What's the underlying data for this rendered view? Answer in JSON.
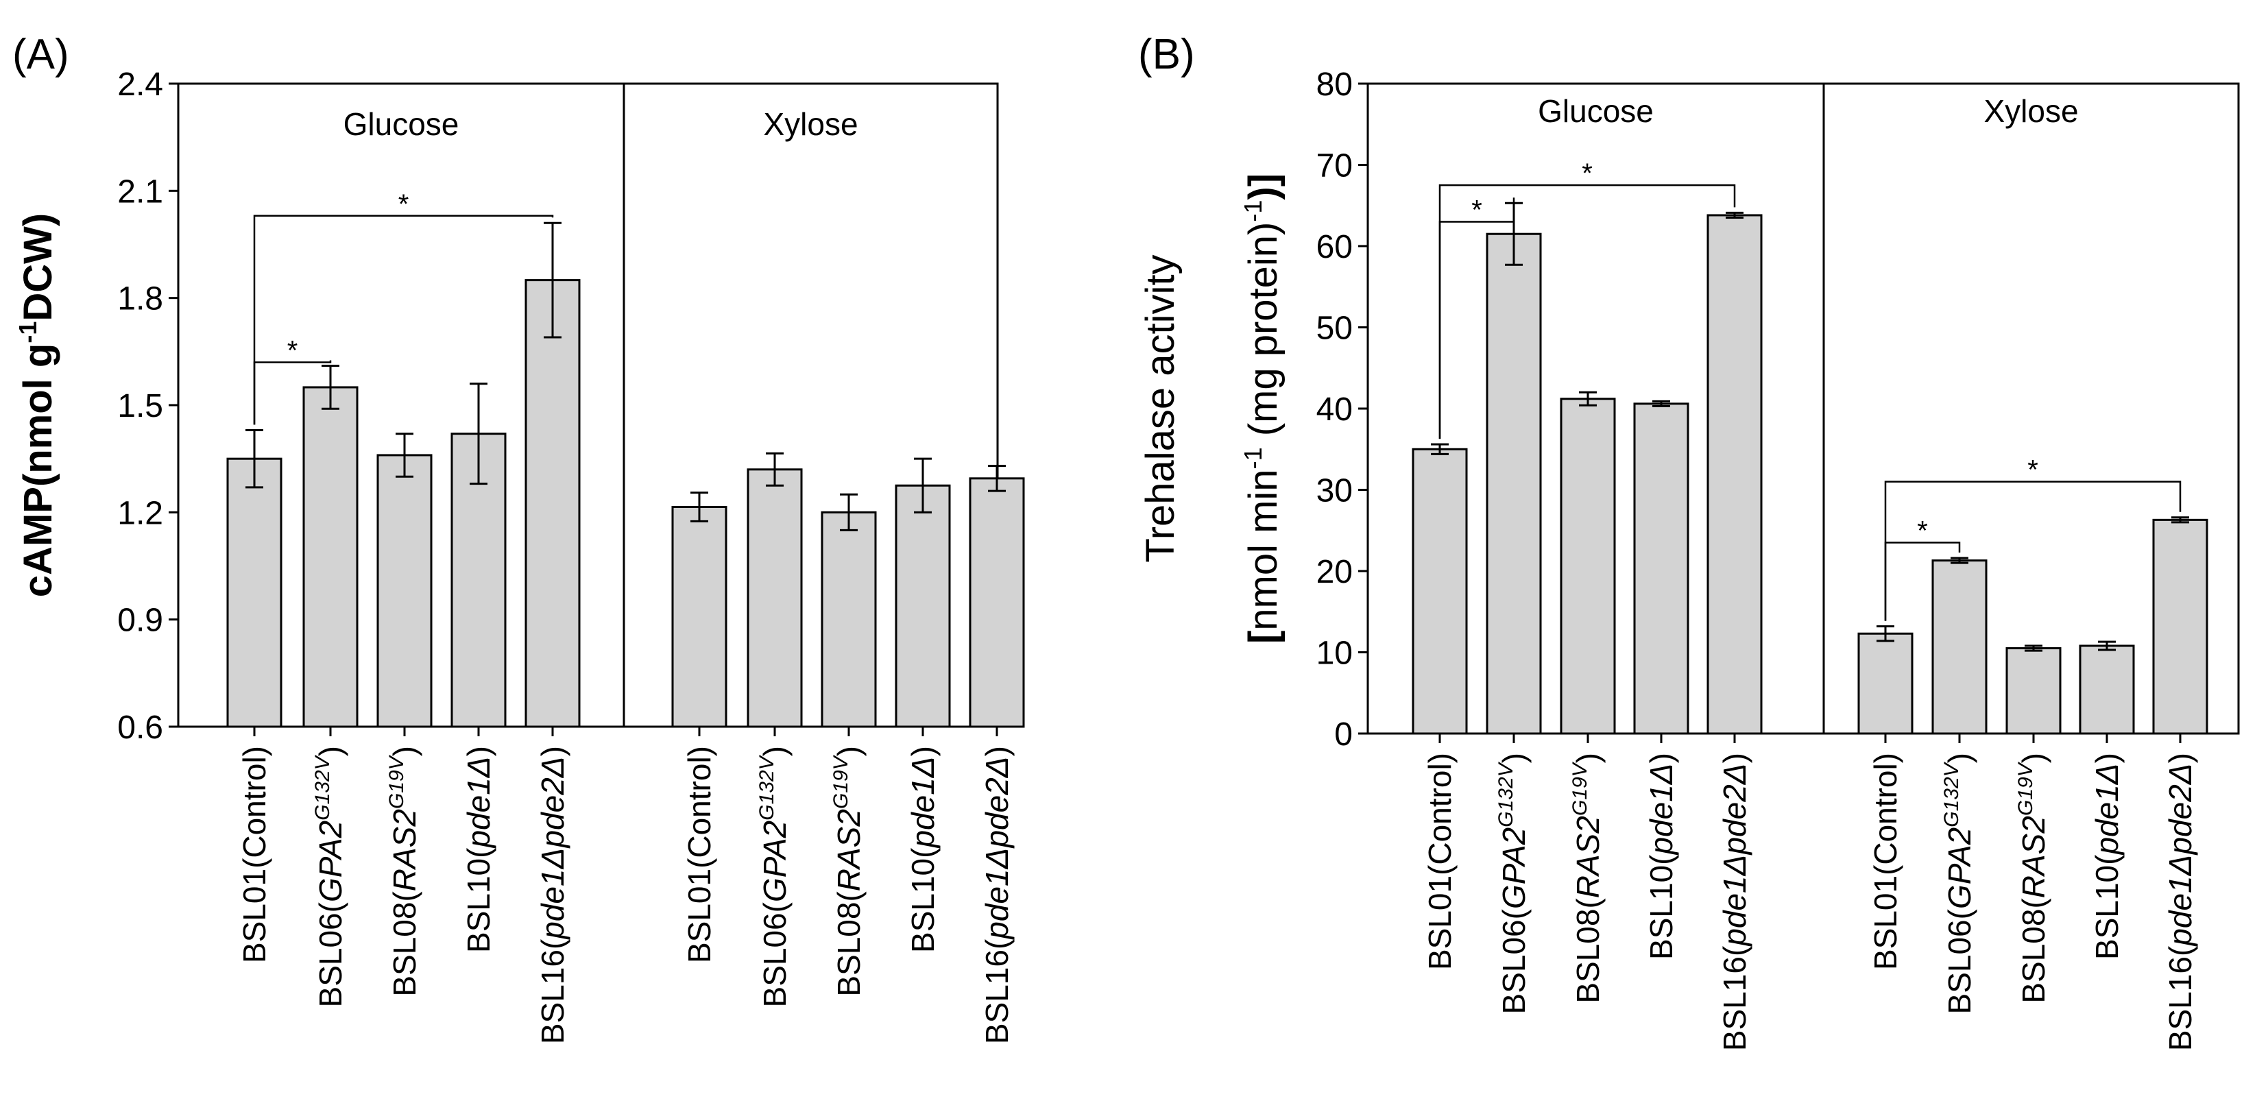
{
  "chart_data": [
    {
      "type": "bar",
      "panel_label": "(A)",
      "ylabel": {
        "main": "cAMP(nmol g",
        "sup": "-1",
        "tail": "DCW)"
      },
      "ylim": [
        0.6,
        2.4
      ],
      "yticks": [
        "0.6",
        "0.9",
        "1.2",
        "1.5",
        "1.8",
        "2.1",
        "2.4"
      ],
      "ytick_values": [
        0.6,
        0.9,
        1.2,
        1.5,
        1.8,
        2.1,
        2.4
      ],
      "groups": [
        {
          "condition": "Glucose",
          "categories": [
            {
              "id": "a-g-bsl01",
              "prefix": "BSL01(Control)",
              "italic": "",
              "sup": "",
              "suffix": ""
            },
            {
              "id": "a-g-bsl06",
              "prefix": "BSL06(",
              "italic": "GPA2",
              "sup": "G132V",
              "suffix": ")"
            },
            {
              "id": "a-g-bsl08",
              "prefix": "BSL08(",
              "italic": "RAS2",
              "sup": "G19V",
              "suffix": ")"
            },
            {
              "id": "a-g-bsl10",
              "prefix": "BSL10(",
              "italic": "pde1Δ",
              "sup": "",
              "suffix": ")"
            },
            {
              "id": "a-g-bsl16",
              "prefix": "BSL16(",
              "italic": "pde1Δpde2Δ",
              "sup": "",
              "suffix": ")"
            }
          ],
          "values": [
            1.35,
            1.55,
            1.36,
            1.42,
            1.85
          ],
          "errors": [
            0.08,
            0.06,
            0.06,
            0.14,
            0.16
          ],
          "significance": [
            {
              "from": 0,
              "to": 1,
              "label": "*",
              "y": 1.62
            },
            {
              "from": 0,
              "to": 4,
              "label": "*",
              "y": 2.03
            }
          ]
        },
        {
          "condition": "Xylose",
          "categories": [
            {
              "id": "a-x-bsl01",
              "prefix": "BSL01(Control)",
              "italic": "",
              "sup": "",
              "suffix": ""
            },
            {
              "id": "a-x-bsl06",
              "prefix": "BSL06(",
              "italic": "GPA2",
              "sup": "G132V",
              "suffix": ")"
            },
            {
              "id": "a-x-bsl08",
              "prefix": "BSL08(",
              "italic": "RAS2",
              "sup": "G19V",
              "suffix": ")"
            },
            {
              "id": "a-x-bsl10",
              "prefix": "BSL10(",
              "italic": "pde1Δ",
              "sup": "",
              "suffix": ")"
            },
            {
              "id": "a-x-bsl16",
              "prefix": "BSL16(",
              "italic": "pde1Δpde2Δ",
              "sup": "",
              "suffix": ")"
            }
          ],
          "values": [
            1.215,
            1.32,
            1.2,
            1.275,
            1.295
          ],
          "errors": [
            0.04,
            0.045,
            0.05,
            0.075,
            0.035
          ],
          "significance": []
        }
      ]
    },
    {
      "type": "bar",
      "panel_label": "(B)",
      "ylabel_line1": "Trehalase activity",
      "ylabel_line2": {
        "open": "[",
        "a": "nmol min",
        "sup1": "-1",
        "b": " (mg protein)",
        "sup2": "-1",
        "close": ")]"
      },
      "ylim": [
        0,
        80
      ],
      "yticks": [
        "0",
        "10",
        "20",
        "30",
        "40",
        "50",
        "60",
        "70",
        "80"
      ],
      "ytick_values": [
        0,
        10,
        20,
        30,
        40,
        50,
        60,
        70,
        80
      ],
      "groups": [
        {
          "condition": "Glucose",
          "categories": [
            {
              "id": "b-g-bsl01",
              "prefix": "BSL01(Control)",
              "italic": "",
              "sup": "",
              "suffix": ""
            },
            {
              "id": "b-g-bsl06",
              "prefix": "BSL06(",
              "italic": "GPA2",
              "sup": "G132V",
              "suffix": ")"
            },
            {
              "id": "b-g-bsl08",
              "prefix": "BSL08(",
              "italic": "RAS2",
              "sup": "G19V",
              "suffix": ")"
            },
            {
              "id": "b-g-bsl10",
              "prefix": "BSL10(",
              "italic": "pde1Δ",
              "sup": "",
              "suffix": ")"
            },
            {
              "id": "b-g-bsl16",
              "prefix": "BSL16(",
              "italic": "pde1Δpde2Δ",
              "sup": "",
              "suffix": ")"
            }
          ],
          "values": [
            35,
            61.5,
            41.2,
            40.6,
            63.8
          ],
          "errors": [
            0.6,
            3.8,
            0.8,
            0.3,
            0.3
          ],
          "significance": [
            {
              "from": 0,
              "to": 1,
              "label": "*",
              "y": 63.0
            },
            {
              "from": 0,
              "to": 4,
              "label": "*",
              "y": 67.5
            }
          ]
        },
        {
          "condition": "Xylose",
          "categories": [
            {
              "id": "b-x-bsl01",
              "prefix": "BSL01(Control)",
              "italic": "",
              "sup": "",
              "suffix": ""
            },
            {
              "id": "b-x-bsl06",
              "prefix": "BSL06(",
              "italic": "GPA2",
              "sup": "G132V",
              "suffix": ")"
            },
            {
              "id": "b-x-bsl08",
              "prefix": "BSL08(",
              "italic": "RAS2",
              "sup": "G19V",
              "suffix": ")"
            },
            {
              "id": "b-x-bsl10",
              "prefix": "BSL10(",
              "italic": "pde1Δ",
              "sup": "",
              "suffix": ")"
            },
            {
              "id": "b-x-bsl16",
              "prefix": "BSL16(",
              "italic": "pde1Δpde2Δ",
              "sup": "",
              "suffix": ")"
            }
          ],
          "values": [
            12.3,
            21.3,
            10.5,
            10.8,
            26.3
          ],
          "errors": [
            0.9,
            0.3,
            0.3,
            0.5,
            0.3
          ],
          "significance": [
            {
              "from": 0,
              "to": 1,
              "label": "*",
              "y": 23.5
            },
            {
              "from": 0,
              "to": 4,
              "label": "*",
              "y": 31.0
            }
          ]
        }
      ]
    }
  ],
  "colors": {
    "bar_fill": "#d3d3d3",
    "stroke": "#000000",
    "background": "#ffffff"
  }
}
